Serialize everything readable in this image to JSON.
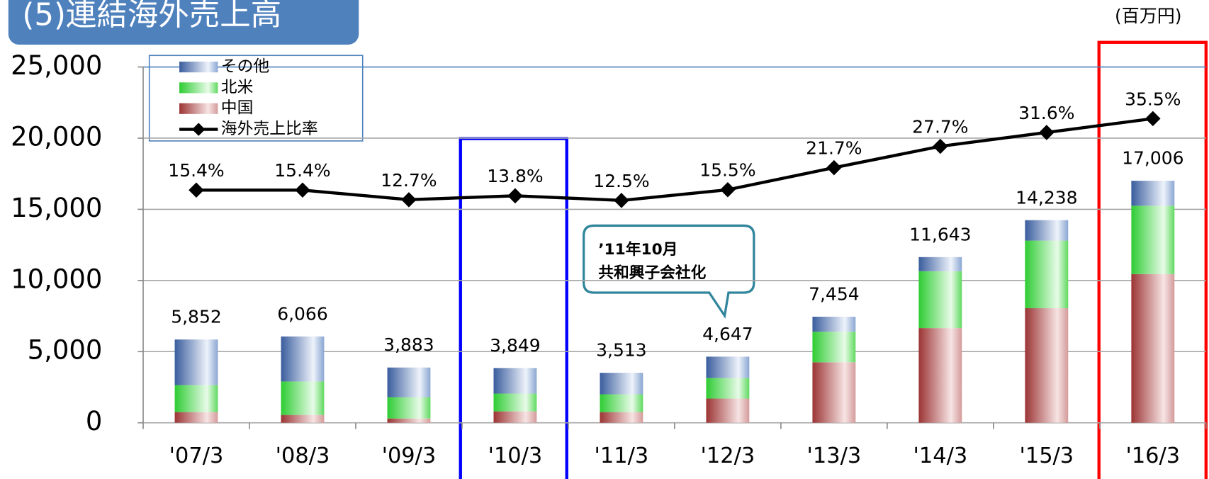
{
  "chart_data": {
    "type": "bar",
    "title": "(5)連結海外売上高",
    "unit_label": "(百万円)",
    "categories": [
      "'07/3",
      "'08/3",
      "'09/3",
      "'10/3",
      "'11/3",
      "'12/3",
      "'13/3",
      "'14/3",
      "'15/3",
      "'16/3"
    ],
    "series": [
      {
        "name": "中国",
        "color": "#a83c3c",
        "values": [
          750,
          550,
          300,
          800,
          750,
          1700,
          4250,
          6650,
          8050,
          10450
        ]
      },
      {
        "name": "北米",
        "color": "#33cc33",
        "values": [
          1900,
          2350,
          1500,
          1250,
          1250,
          1450,
          2150,
          4000,
          4750,
          4800
        ]
      },
      {
        "name": "その他",
        "color": "#3d62a6",
        "values": [
          3202,
          3166,
          2083,
          1799,
          1513,
          1497,
          1054,
          993,
          1438,
          1756
        ]
      },
      {
        "name": "海外売上比率",
        "type": "line",
        "axis": "y2",
        "color": "#000000",
        "values": [
          15.4,
          15.4,
          12.7,
          13.8,
          12.5,
          15.5,
          21.7,
          27.7,
          31.6,
          35.5
        ],
        "value_labels": [
          "15.4%",
          "15.4%",
          "12.7%",
          "13.8%",
          "12.5%",
          "15.5%",
          "21.7%",
          "27.7%",
          "31.6%",
          "35.5%"
        ]
      }
    ],
    "totals": {
      "values": [
        5852,
        6066,
        3883,
        3849,
        3513,
        4647,
        7454,
        11643,
        14238,
        17006
      ],
      "value_labels": [
        "5,852",
        "6,066",
        "3,883",
        "3,849",
        "3,513",
        "4,647",
        "7,454",
        "11,643",
        "14,238",
        "17,006"
      ]
    },
    "annotation": [
      "’11年10月",
      "共和興子会社化"
    ],
    "ylim": [
      0,
      25000
    ],
    "yticks": [
      0,
      {
        "value": 5000,
        "label": "5,000"
      },
      {
        "value": 10000,
        "label": "10,000"
      },
      {
        "value": 15000,
        "label": "15,000"
      },
      {
        "value": 20000,
        "label": "20,000"
      },
      {
        "value": 25000,
        "label": "25,000"
      }
    ],
    "y2lim": [
      -50,
      50
    ],
    "grid": true
  }
}
